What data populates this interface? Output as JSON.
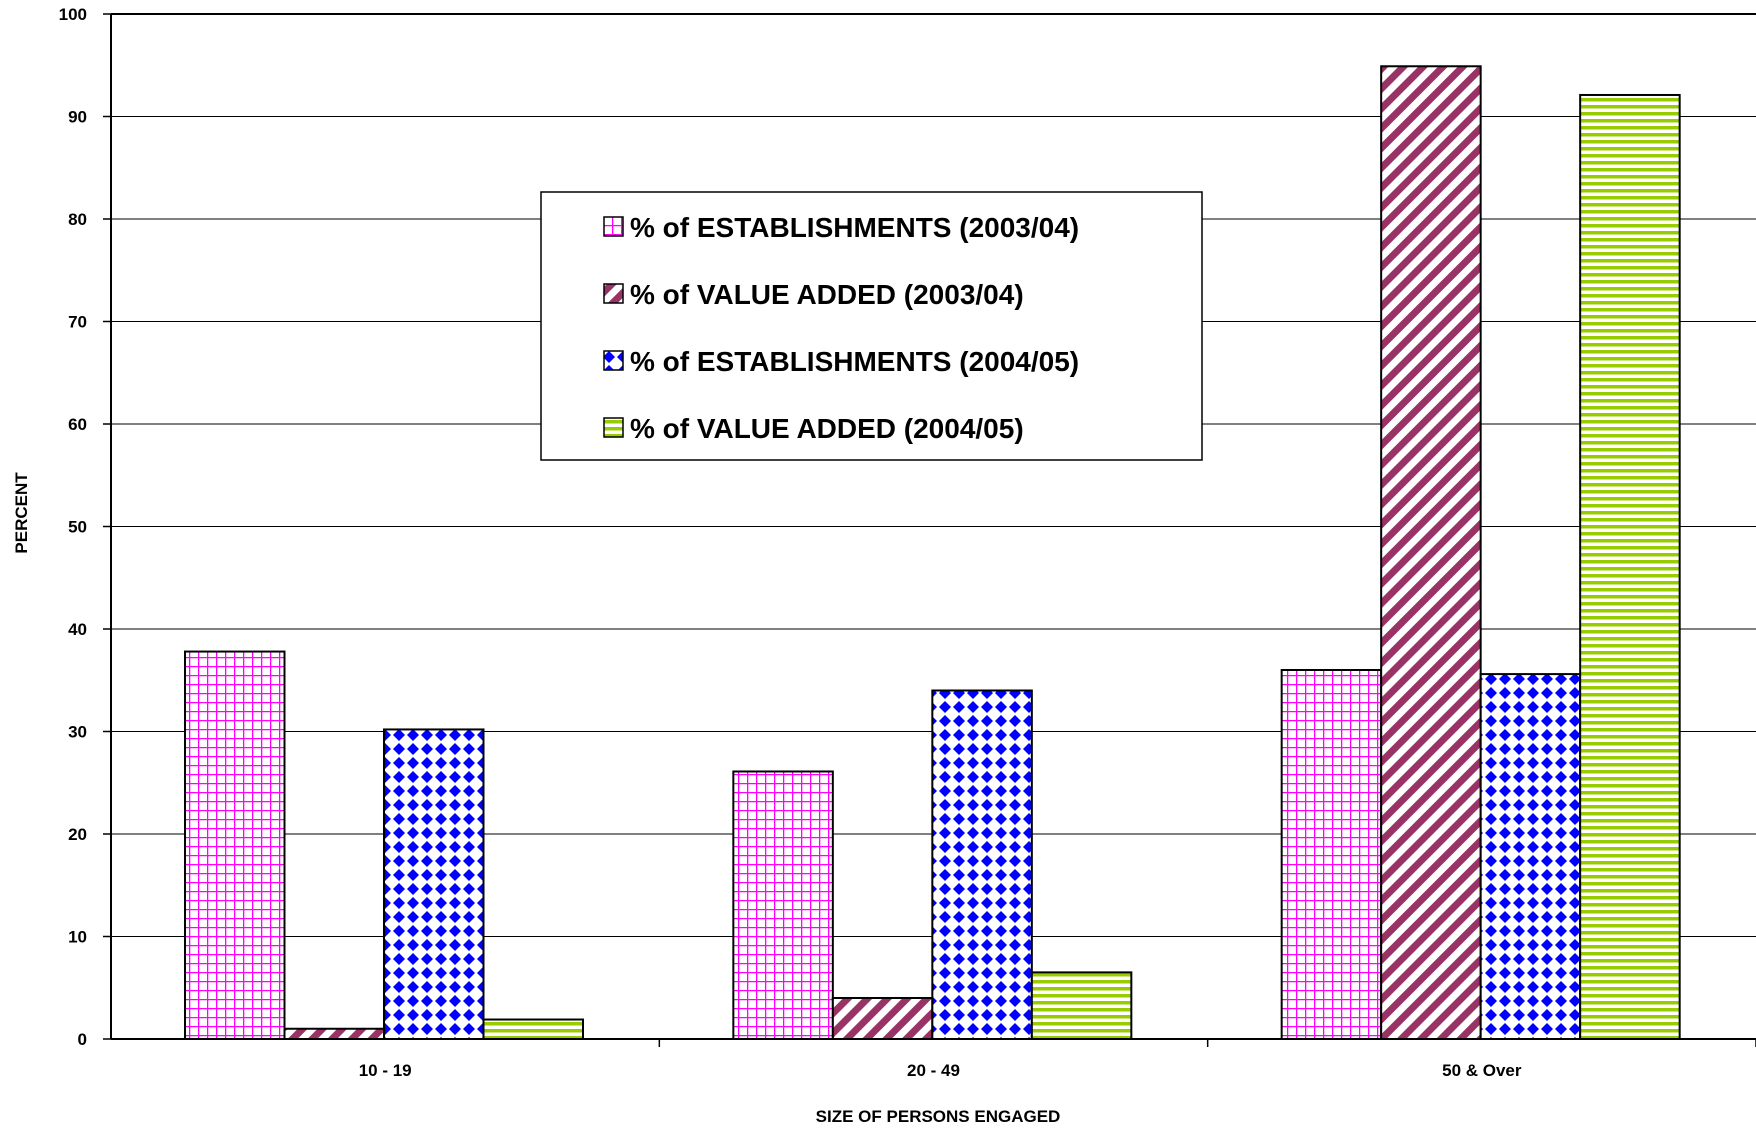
{
  "chart_data": {
    "type": "bar",
    "title": "",
    "xlabel": "SIZE OF PERSONS ENGAGED",
    "ylabel": "PERCENT",
    "ylim": [
      0,
      100
    ],
    "yticks": [
      "0",
      "10",
      "20",
      "30",
      "40",
      "50",
      "60",
      "70",
      "80",
      "90",
      "100"
    ],
    "grid": true,
    "legend_position": "center",
    "categories": [
      "10 - 19",
      "20 - 49",
      "50 & Over"
    ],
    "series": [
      {
        "name": "% of ESTABLISHMENTS (2003/04)",
        "values": [
          37.8,
          26.1,
          36.0
        ],
        "pattern": "grid",
        "color": "#ff00ff"
      },
      {
        "name": "% of VALUE ADDED (2003/04)",
        "values": [
          1.0,
          4.0,
          94.9
        ],
        "pattern": "diagonal",
        "color": "#993366"
      },
      {
        "name": "% of ESTABLISHMENTS (2004/05)",
        "values": [
          30.2,
          34.0,
          35.6
        ],
        "pattern": "diamond",
        "color": "#0000ff"
      },
      {
        "name": "% of VALUE ADDED (2004/05)",
        "values": [
          1.9,
          6.5,
          92.1
        ],
        "pattern": "horizontal",
        "color": "#99cc00"
      }
    ]
  }
}
